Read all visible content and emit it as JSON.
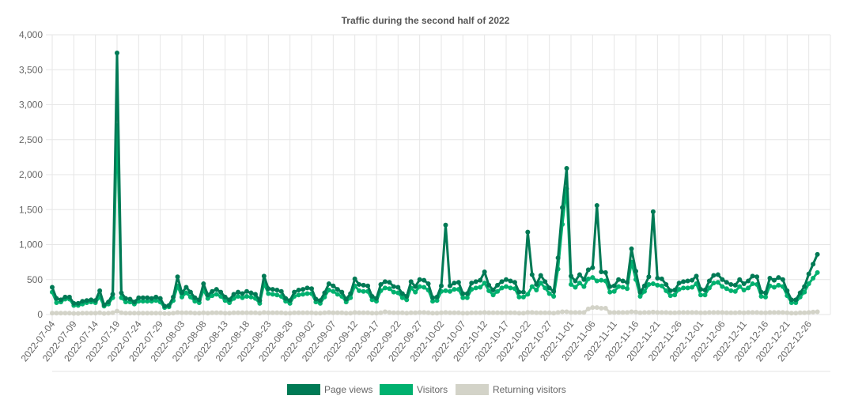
{
  "chart_data": {
    "type": "line",
    "title": "Traffic during the second half of 2022",
    "xlabel": "",
    "ylabel": "",
    "ylim": [
      0,
      4000
    ],
    "y_ticks": [
      "0",
      "500",
      "1,000",
      "1,500",
      "2,000",
      "2,500",
      "3,000",
      "3,500",
      "4,000"
    ],
    "y_tick_values": [
      0,
      500,
      1000,
      1500,
      2000,
      2500,
      3000,
      3500,
      4000
    ],
    "x_start": "2022-07-04",
    "x_end": "2022-12-31",
    "x_tick_labels": [
      "2022-07-04",
      "2022-07-09",
      "2022-07-14",
      "2022-07-19",
      "2022-07-24",
      "2022-07-29",
      "2022-08-03",
      "2022-08-08",
      "2022-08-13",
      "2022-08-18",
      "2022-08-23",
      "2022-08-28",
      "2022-09-02",
      "2022-09-07",
      "2022-09-12",
      "2022-09-17",
      "2022-09-22",
      "2022-09-27",
      "2022-10-02",
      "2022-10-07",
      "2022-10-12",
      "2022-10-17",
      "2022-10-22",
      "2022-10-27",
      "2022-11-01",
      "2022-11-06",
      "2022-11-11",
      "2022-11-16",
      "2022-11-21",
      "2022-11-26",
      "2022-12-01",
      "2022-12-06",
      "2022-12-11",
      "2022-12-16",
      "2022-12-21",
      "2022-12-26"
    ],
    "grid": true,
    "legend_position": "bottom",
    "series": [
      {
        "name": "Page views",
        "color": "#007a55",
        "values": [
          390,
          230,
          210,
          250,
          250,
          160,
          160,
          190,
          200,
          210,
          200,
          340,
          140,
          180,
          290,
          3740,
          310,
          230,
          220,
          180,
          240,
          240,
          240,
          230,
          250,
          230,
          120,
          130,
          250,
          540,
          310,
          390,
          320,
          240,
          210,
          440,
          280,
          330,
          360,
          320,
          250,
          210,
          290,
          320,
          300,
          330,
          310,
          290,
          200,
          550,
          370,
          360,
          350,
          330,
          230,
          200,
          320,
          350,
          360,
          380,
          370,
          220,
          200,
          310,
          440,
          410,
          360,
          320,
          220,
          300,
          510,
          430,
          420,
          410,
          260,
          230,
          430,
          470,
          460,
          400,
          390,
          300,
          260,
          470,
          400,
          500,
          490,
          440,
          240,
          250,
          410,
          1280,
          410,
          450,
          460,
          300,
          300,
          450,
          470,
          490,
          610,
          420,
          350,
          420,
          470,
          500,
          480,
          460,
          320,
          320,
          1180,
          570,
          430,
          560,
          470,
          380,
          330,
          810,
          1530,
          2090,
          550,
          480,
          570,
          500,
          640,
          670,
          1560,
          610,
          600,
          400,
          410,
          500,
          480,
          460,
          940,
          620,
          320,
          410,
          540,
          1470,
          520,
          510,
          430,
          340,
          350,
          450,
          470,
          480,
          490,
          550,
          360,
          350,
          480,
          560,
          570,
          500,
          460,
          430,
          420,
          500,
          440,
          480,
          550,
          540,
          320,
          310,
          520,
          490,
          530,
          500,
          340,
          210,
          210,
          310,
          400,
          580,
          720,
          860
        ]
      },
      {
        "name": "Visitors",
        "color": "#00b16f",
        "values": [
          320,
          170,
          180,
          220,
          220,
          130,
          130,
          150,
          170,
          180,
          170,
          250,
          120,
          150,
          240,
          2700,
          240,
          180,
          180,
          150,
          190,
          190,
          190,
          190,
          200,
          180,
          100,
          110,
          200,
          410,
          250,
          310,
          250,
          190,
          170,
          350,
          230,
          270,
          290,
          260,
          200,
          170,
          230,
          260,
          240,
          260,
          250,
          230,
          160,
          440,
          300,
          290,
          280,
          260,
          190,
          160,
          260,
          280,
          290,
          300,
          300,
          180,
          160,
          250,
          350,
          330,
          290,
          260,
          180,
          240,
          410,
          340,
          330,
          330,
          210,
          190,
          340,
          380,
          370,
          320,
          310,
          240,
          210,
          380,
          320,
          400,
          390,
          350,
          190,
          200,
          330,
          340,
          330,
          360,
          360,
          240,
          240,
          360,
          380,
          390,
          450,
          340,
          280,
          330,
          380,
          400,
          380,
          370,
          250,
          250,
          290,
          400,
          350,
          450,
          380,
          300,
          260,
          650,
          1290,
          1800,
          430,
          390,
          450,
          400,
          510,
          530,
          480,
          490,
          480,
          320,
          330,
          400,
          390,
          370,
          750,
          500,
          260,
          330,
          430,
          440,
          420,
          410,
          340,
          270,
          280,
          360,
          380,
          380,
          390,
          440,
          280,
          280,
          380,
          450,
          460,
          400,
          370,
          340,
          330,
          400,
          350,
          380,
          440,
          430,
          260,
          250,
          410,
          390,
          420,
          400,
          270,
          170,
          170,
          250,
          320,
          440,
          520,
          600
        ]
      },
      {
        "name": "Returning visitors",
        "color": "#d3d3c8",
        "values": [
          20,
          20,
          20,
          20,
          20,
          15,
          15,
          20,
          20,
          20,
          20,
          25,
          15,
          20,
          25,
          50,
          25,
          20,
          20,
          20,
          20,
          20,
          20,
          20,
          20,
          20,
          15,
          15,
          20,
          30,
          25,
          25,
          25,
          20,
          20,
          25,
          20,
          25,
          25,
          25,
          20,
          20,
          25,
          25,
          25,
          25,
          25,
          25,
          20,
          30,
          25,
          25,
          25,
          25,
          20,
          20,
          25,
          25,
          25,
          25,
          25,
          20,
          20,
          25,
          30,
          25,
          25,
          25,
          20,
          20,
          30,
          25,
          25,
          25,
          20,
          20,
          25,
          40,
          30,
          25,
          25,
          25,
          20,
          25,
          25,
          30,
          30,
          25,
          20,
          20,
          25,
          30,
          25,
          25,
          25,
          20,
          20,
          25,
          25,
          25,
          30,
          25,
          25,
          25,
          25,
          25,
          25,
          25,
          20,
          20,
          30,
          30,
          25,
          25,
          25,
          25,
          20,
          30,
          40,
          40,
          30,
          30,
          30,
          30,
          80,
          100,
          100,
          90,
          90,
          30,
          30,
          30,
          30,
          30,
          40,
          35,
          25,
          30,
          30,
          35,
          30,
          30,
          30,
          25,
          25,
          30,
          30,
          30,
          30,
          30,
          25,
          25,
          30,
          30,
          30,
          30,
          25,
          25,
          25,
          30,
          25,
          30,
          30,
          30,
          25,
          25,
          30,
          30,
          30,
          30,
          25,
          20,
          20,
          25,
          25,
          30,
          35,
          40
        ]
      }
    ]
  }
}
